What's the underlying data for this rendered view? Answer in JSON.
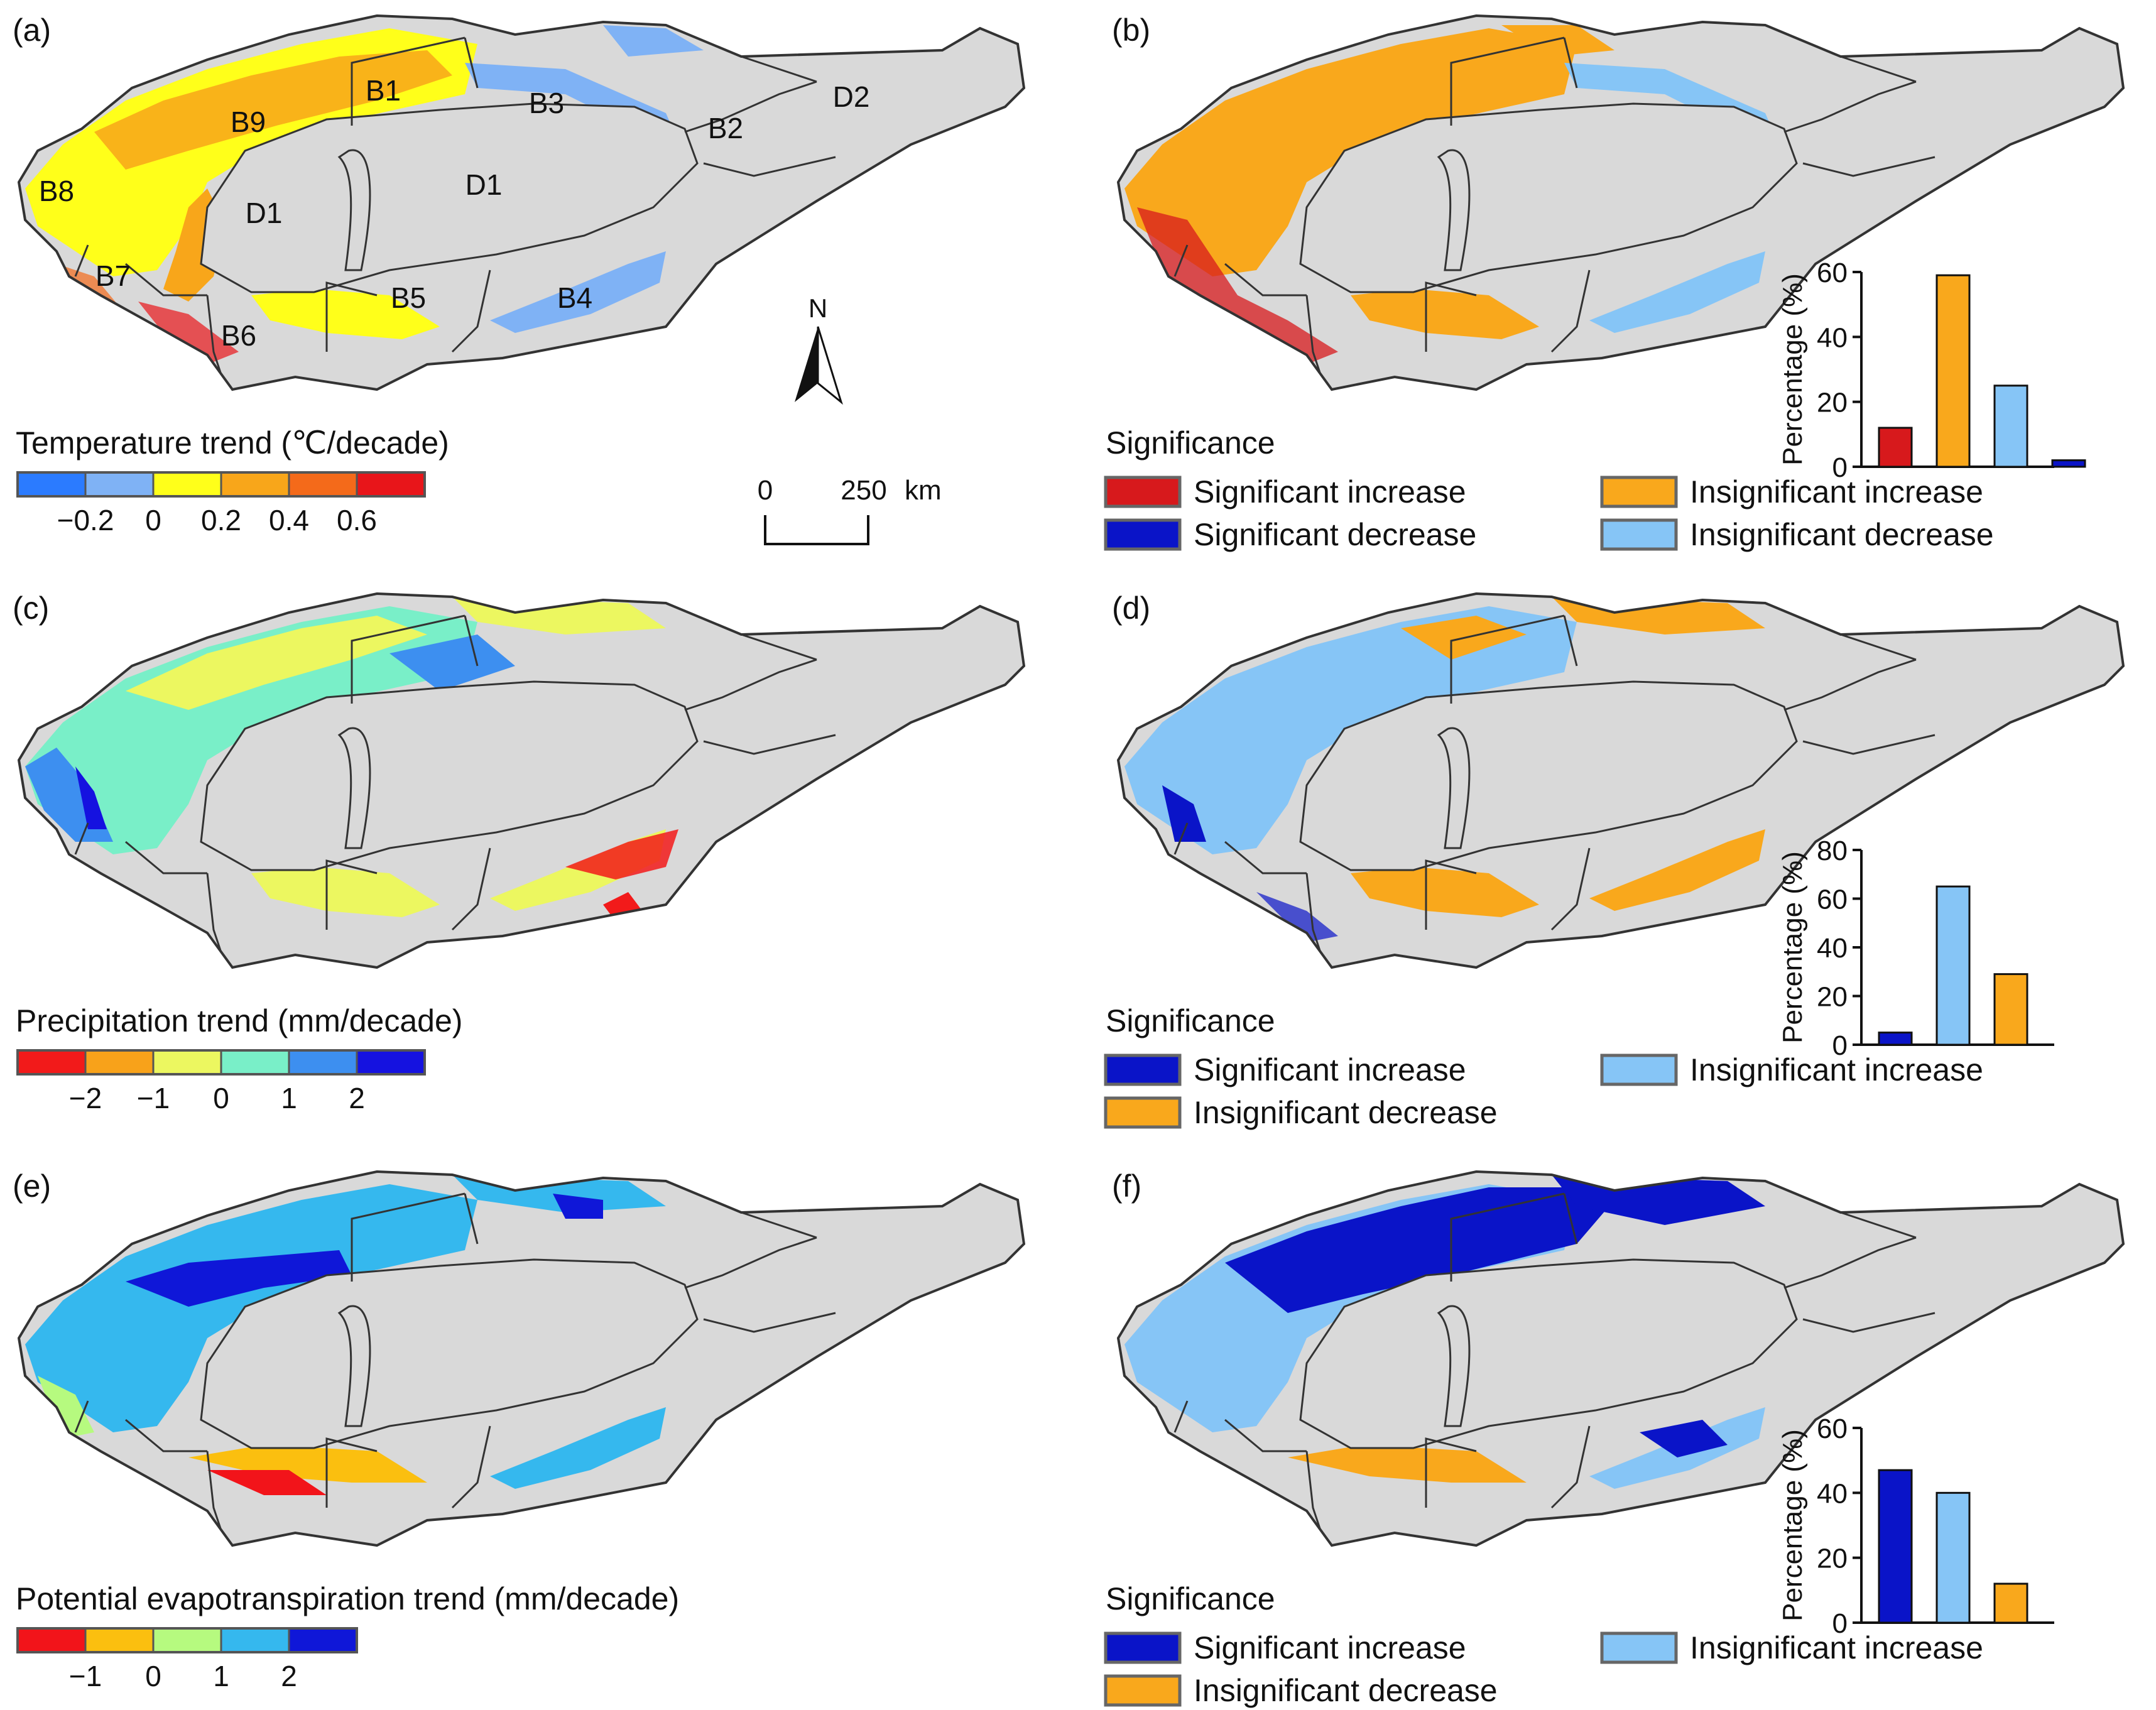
{
  "panels": [
    {
      "label": "(a)",
      "kind": "trend",
      "palette": [
        "#2b7bff",
        "#7fb2f5",
        "#ffff1a",
        "#f8a61a",
        "#f46a1a",
        "#e8151a"
      ],
      "fill": "temp",
      "legend_title": "Temperature trend (℃/decade)",
      "ticks": [
        "−0.2",
        "0",
        "0.2",
        "0.4",
        "0.6"
      ]
    },
    {
      "label": "(b)",
      "kind": "sig",
      "fill": "temp_sig",
      "legend_title": "Significance",
      "legend_items": [
        {
          "label": "Significant increase",
          "color": "#d7191c"
        },
        {
          "label": "Insignificant increase",
          "color": "#f9a81c"
        },
        {
          "label": "Significant decrease",
          "color": "#0a14c8"
        },
        {
          "label": "Insignificant decrease",
          "color": "#86c5f6"
        }
      ]
    },
    {
      "label": "(c)",
      "kind": "trend",
      "palette": [
        "#f21a1a",
        "#f8a21a",
        "#ecf760",
        "#79efc8",
        "#3d8ff0",
        "#1512e0"
      ],
      "fill": "prec",
      "legend_title": "Precipitation trend (mm/decade)",
      "ticks": [
        "−2",
        "−1",
        "0",
        "1",
        "2"
      ]
    },
    {
      "label": "(d)",
      "kind": "sig",
      "fill": "prec_sig",
      "legend_title": "Significance",
      "legend_items": [
        {
          "label": "Significant increase",
          "color": "#0a14c8"
        },
        {
          "label": "Insignificant increase",
          "color": "#86c5f6"
        },
        {
          "label": "Insignificant decrease",
          "color": "#f9a81c"
        }
      ]
    },
    {
      "label": "(e)",
      "kind": "trend",
      "palette": [
        "#f2141a",
        "#fbbf0f",
        "#b6fa7f",
        "#35b8ee",
        "#0f17d8"
      ],
      "fill": "pet",
      "legend_title": "Potential evapotranspiration trend (mm/decade)",
      "ticks": [
        "−1",
        "0",
        "1",
        "2"
      ]
    },
    {
      "label": "(f)",
      "kind": "sig",
      "fill": "pet_sig",
      "legend_title": "Significance",
      "legend_items": [
        {
          "label": "Significant increase",
          "color": "#0a14c8"
        },
        {
          "label": "Insignificant increase",
          "color": "#86c5f6"
        },
        {
          "label": "Insignificant decrease",
          "color": "#f9a81c"
        }
      ]
    }
  ],
  "region_labels": [
    "B1",
    "B2",
    "B3",
    "B4",
    "B5",
    "B6",
    "B7",
    "B8",
    "B9",
    "D1",
    "D1",
    "D2"
  ],
  "north_arrow": "N",
  "scale_bar": {
    "start": "0",
    "end": "250",
    "unit": "km"
  },
  "chart_data": [
    {
      "type": "bar",
      "panel": "(b)",
      "ylabel": "Percentage (%)",
      "ylim": [
        0,
        60
      ],
      "yticks": [
        0,
        20,
        40,
        60
      ],
      "categories": [
        "Significant increase",
        "Insignificant increase",
        "Insignificant decrease",
        "Significant decrease"
      ],
      "values": [
        12,
        59,
        25,
        2
      ],
      "colors": [
        "#d7191c",
        "#f9a81c",
        "#86c5f6",
        "#0a14c8"
      ]
    },
    {
      "type": "bar",
      "panel": "(d)",
      "ylabel": "Percentage (%)",
      "ylim": [
        0,
        80
      ],
      "yticks": [
        0,
        20,
        40,
        60,
        80
      ],
      "categories": [
        "Significant increase",
        "Insignificant increase",
        "Insignificant decrease"
      ],
      "values": [
        5,
        65,
        29
      ],
      "colors": [
        "#0a14c8",
        "#86c5f6",
        "#f9a81c"
      ]
    },
    {
      "type": "bar",
      "panel": "(f)",
      "ylabel": "Percentage (%)",
      "ylim": [
        0,
        60
      ],
      "yticks": [
        0,
        20,
        40,
        60
      ],
      "categories": [
        "Significant increase",
        "Insignificant increase",
        "Insignificant decrease"
      ],
      "values": [
        47,
        40,
        12
      ],
      "colors": [
        "#0a14c8",
        "#86c5f6",
        "#f9a81c"
      ]
    }
  ]
}
